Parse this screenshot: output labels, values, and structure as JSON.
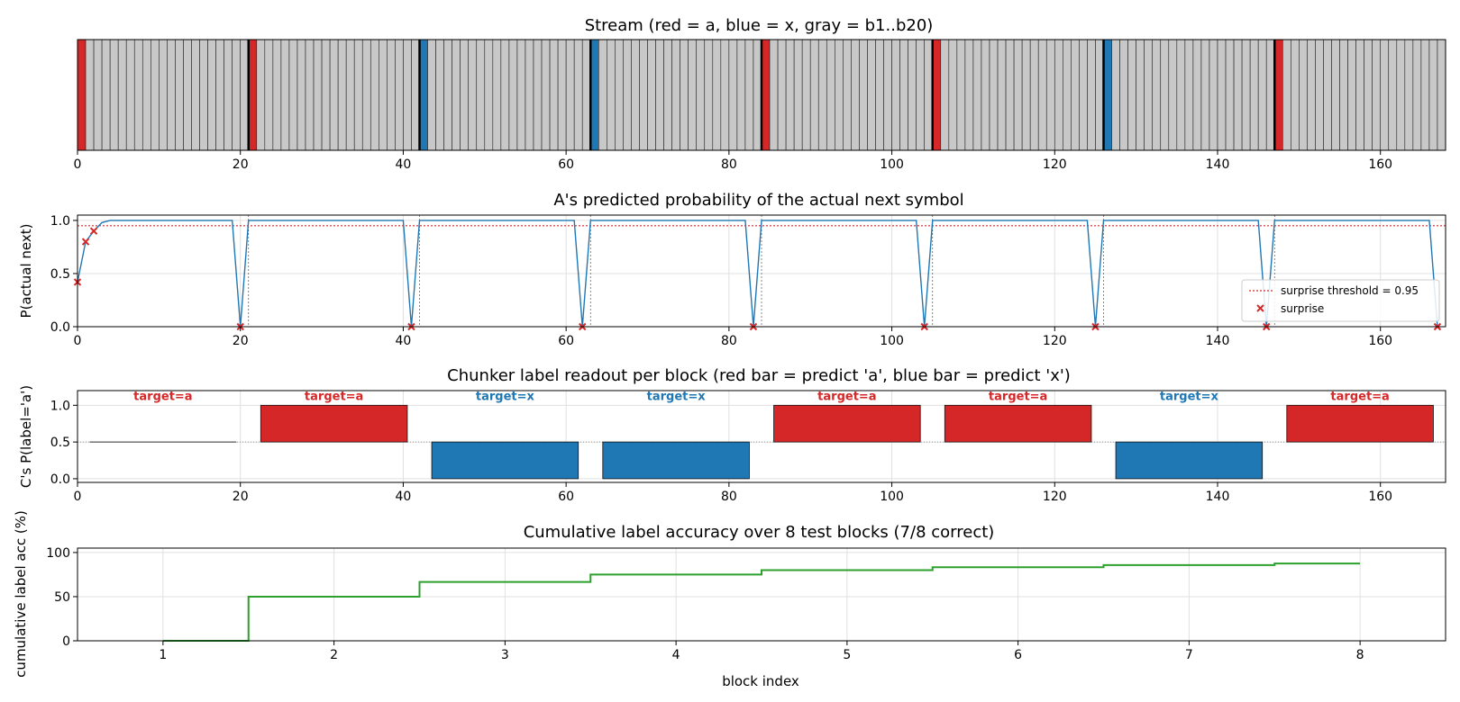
{
  "colors": {
    "a": "#d62728",
    "x": "#1f77b4",
    "gray": "#c8c8c8",
    "line": "#1f77b4",
    "surprise": "#d62728",
    "threshold": "#d62728",
    "accuracy": "#2ca02c",
    "grid": "#e0e0e0"
  },
  "chart_data": [
    {
      "type": "bar",
      "title": "Stream (red = a, blue = x, gray = b1..b20)",
      "xlim": [
        0,
        168
      ],
      "xticks": [
        0,
        20,
        40,
        60,
        80,
        100,
        120,
        140,
        160
      ],
      "block_length": 21,
      "block_heads": [
        "a",
        "a",
        "x",
        "x",
        "a",
        "a",
        "x",
        "a"
      ],
      "fill_symbols": "b1..b20"
    },
    {
      "type": "line",
      "title": "A's predicted probability of the actual next symbol",
      "ylabel": "P(actual next)",
      "xlim": [
        0,
        168
      ],
      "ylim": [
        0,
        1.05
      ],
      "xticks": [
        0,
        20,
        40,
        60,
        80,
        100,
        120,
        140,
        160
      ],
      "yticks": [
        "0.0",
        "0.5",
        "1.0"
      ],
      "threshold": 0.95,
      "boundaries": [
        21,
        42,
        63,
        84,
        105,
        126,
        147
      ],
      "series": [
        {
          "name": "",
          "x": [
            0,
            1,
            2,
            3,
            4,
            5,
            19,
            20,
            21,
            22,
            40,
            41,
            42,
            43,
            61,
            62,
            63,
            64,
            82,
            83,
            84,
            85,
            103,
            104,
            105,
            106,
            124,
            125,
            126,
            127,
            145,
            146,
            147,
            148,
            166,
            167
          ],
          "y": [
            0.42,
            0.8,
            0.9,
            0.98,
            1.0,
            1.0,
            1.0,
            0.0,
            1.0,
            1.0,
            1.0,
            0.0,
            1.0,
            1.0,
            1.0,
            0.0,
            1.0,
            1.0,
            1.0,
            0.0,
            1.0,
            1.0,
            1.0,
            0.0,
            1.0,
            1.0,
            1.0,
            0.0,
            1.0,
            1.0,
            1.0,
            0.0,
            1.0,
            1.0,
            1.0,
            0.0
          ]
        }
      ],
      "surprise_points": {
        "x": [
          0,
          1,
          2,
          20,
          41,
          62,
          83,
          104,
          125,
          146,
          167
        ],
        "y": [
          0.42,
          0.8,
          0.9,
          0.0,
          0.0,
          0.0,
          0.0,
          0.0,
          0.0,
          0.0,
          0.0
        ]
      },
      "legend": {
        "placement": "lower-right",
        "threshold_label": "surprise threshold = 0.95",
        "surprise_label": "surprise"
      }
    },
    {
      "type": "bar",
      "title": "Chunker label readout per block (red bar = predict 'a', blue bar = predict 'x')",
      "ylabel": "C's P(label='a')",
      "xlim": [
        0,
        168
      ],
      "ylim": [
        -0.05,
        1.2
      ],
      "xticks": [
        0,
        20,
        40,
        60,
        80,
        100,
        120,
        140,
        160
      ],
      "yticks": [
        "0.0",
        "0.5",
        "1.0"
      ],
      "baseline": 0.5,
      "bars": [
        {
          "start": 1.5,
          "end": 19.5,
          "value": 0.5,
          "predict": "none",
          "target_label": "target=a",
          "target": "a"
        },
        {
          "start": 22.5,
          "end": 40.5,
          "value": 1.0,
          "predict": "a",
          "target_label": "target=a",
          "target": "a"
        },
        {
          "start": 43.5,
          "end": 61.5,
          "value": 0.0,
          "predict": "x",
          "target_label": "target=x",
          "target": "x"
        },
        {
          "start": 64.5,
          "end": 82.5,
          "value": 0.0,
          "predict": "x",
          "target_label": "target=x",
          "target": "x"
        },
        {
          "start": 85.5,
          "end": 103.5,
          "value": 1.0,
          "predict": "a",
          "target_label": "target=a",
          "target": "a"
        },
        {
          "start": 106.5,
          "end": 124.5,
          "value": 1.0,
          "predict": "a",
          "target_label": "target=a",
          "target": "a"
        },
        {
          "start": 127.5,
          "end": 145.5,
          "value": 0.0,
          "predict": "x",
          "target_label": "target=x",
          "target": "x"
        },
        {
          "start": 148.5,
          "end": 166.5,
          "value": 1.0,
          "predict": "a",
          "target_label": "target=a",
          "target": "a"
        }
      ]
    },
    {
      "type": "line",
      "title": "Cumulative label accuracy over 8 test blocks (7/8 correct)",
      "xlabel": "block index",
      "ylabel": "cumulative label acc (%)",
      "xlim": [
        0.5,
        8.5
      ],
      "ylim": [
        0,
        105
      ],
      "xticks": [
        "1",
        "2",
        "3",
        "4",
        "5",
        "6",
        "7",
        "8"
      ],
      "yticks": [
        "0",
        "50",
        "100"
      ],
      "step": "mid",
      "series": [
        {
          "name": "",
          "x": [
            1,
            2,
            3,
            4,
            5,
            6,
            7,
            8
          ],
          "y": [
            0,
            50,
            66.7,
            75,
            80,
            83.3,
            85.7,
            87.5
          ]
        }
      ]
    }
  ]
}
